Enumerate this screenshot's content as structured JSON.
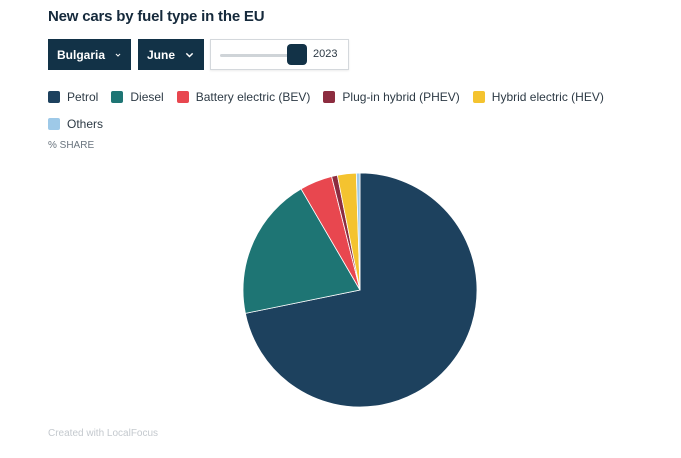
{
  "title": "New cars by fuel type in the EU",
  "controls": {
    "country": "Bulgaria",
    "month": "June",
    "year_label": "2023",
    "year_position": 1.0
  },
  "unit_label": "% SHARE",
  "credit": "Created with LocalFocus",
  "chart_data": {
    "type": "pie",
    "title": "New cars by fuel type in the EU",
    "unit": "% SHARE",
    "slices": [
      {
        "name": "Petrol",
        "value": 71.8,
        "color": "#1d415e"
      },
      {
        "name": "Diesel",
        "value": 19.8,
        "color": "#1e7574"
      },
      {
        "name": "Battery electric (BEV)",
        "value": 4.5,
        "color": "#e8474f"
      },
      {
        "name": "Plug-in hybrid (PHEV)",
        "value": 0.8,
        "color": "#8c2c3f"
      },
      {
        "name": "Hybrid electric (HEV)",
        "value": 2.6,
        "color": "#f4c32f"
      },
      {
        "name": "Others",
        "value": 0.5,
        "color": "#9ec9e8"
      }
    ],
    "start_angle_deg": 0,
    "direction": "clockwise",
    "legend_position": "top"
  }
}
